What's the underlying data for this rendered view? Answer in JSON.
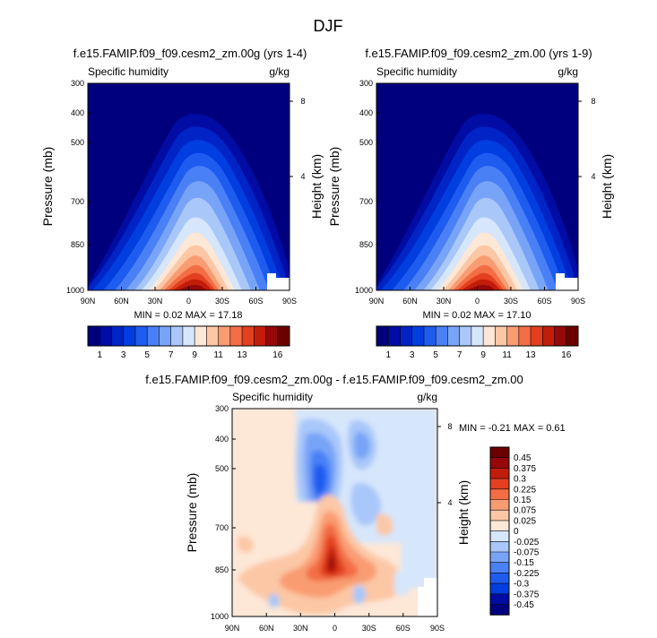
{
  "figure_title": "DJF",
  "chart_data": [
    {
      "type": "heatmap",
      "title": "f.e15.FAMIP.f09_f09.cesm2_zm.00g (yrs 1-4)",
      "variable": "Specific humidity",
      "units": "g/kg",
      "xlabel": "",
      "ylabel": "Pressure (mb)",
      "ylabel_right": "Height (km)",
      "x_ticks": [
        "90N",
        "60N",
        "30N",
        "0",
        "30S",
        "60S",
        "90S"
      ],
      "y_ticks": [
        "300",
        "400",
        "500",
        "700",
        "850",
        "1000"
      ],
      "y_ticks_right": [
        "8",
        "4"
      ],
      "xlim": [
        90,
        -90
      ],
      "ylim": [
        1000,
        300
      ],
      "min": 0.02,
      "max": 17.18,
      "stats_label": "MIN =  0.02  MAX = 17.18",
      "colorbar_levels": [
        1,
        2,
        3,
        4,
        5,
        6,
        7,
        8,
        9,
        10,
        11,
        12,
        13,
        14,
        15,
        16
      ],
      "colorbar_labels": [
        "1",
        "3",
        "5",
        "7",
        "9",
        "11",
        "13",
        "16"
      ]
    },
    {
      "type": "heatmap",
      "title": "f.e15.FAMIP.f09_f09.cesm2_zm.00 (yrs 1-9)",
      "variable": "Specific humidity",
      "units": "g/kg",
      "xlabel": "",
      "ylabel": "Pressure (mb)",
      "ylabel_right": "Height (km)",
      "x_ticks": [
        "90N",
        "60N",
        "30N",
        "0",
        "30S",
        "60S",
        "90S"
      ],
      "y_ticks": [
        "300",
        "400",
        "500",
        "700",
        "850",
        "1000"
      ],
      "y_ticks_right": [
        "8",
        "4"
      ],
      "xlim": [
        90,
        -90
      ],
      "ylim": [
        1000,
        300
      ],
      "min": 0.02,
      "max": 17.1,
      "stats_label": "MIN =  0.02  MAX = 17.10",
      "colorbar_levels": [
        1,
        2,
        3,
        4,
        5,
        6,
        7,
        8,
        9,
        10,
        11,
        12,
        13,
        14,
        15,
        16
      ],
      "colorbar_labels": [
        "1",
        "3",
        "5",
        "7",
        "9",
        "11",
        "13",
        "16"
      ]
    },
    {
      "type": "heatmap",
      "title": "f.e15.FAMIP.f09_f09.cesm2_zm.00g - f.e15.FAMIP.f09_f09.cesm2_zm.00",
      "variable": "Specific humidity",
      "units": "g/kg",
      "xlabel": "",
      "ylabel": "Pressure (mb)",
      "ylabel_right": "Height (km)",
      "x_ticks": [
        "90N",
        "60N",
        "30N",
        "0",
        "30S",
        "60S",
        "90S"
      ],
      "y_ticks": [
        "300",
        "400",
        "500",
        "700",
        "850",
        "1000"
      ],
      "y_ticks_right": [
        "8",
        "4"
      ],
      "xlim": [
        90,
        -90
      ],
      "ylim": [
        1000,
        300
      ],
      "min": -0.21,
      "max": 0.61,
      "stats_label": "MIN = -0.21  MAX =  0.61",
      "colorbar_levels": [
        -0.45,
        -0.375,
        -0.3,
        -0.225,
        -0.15,
        -0.075,
        -0.025,
        0,
        0.025,
        0.075,
        0.15,
        0.225,
        0.3,
        0.375,
        0.45
      ],
      "colorbar_labels": [
        "0.45",
        "0.375",
        "0.3",
        "0.225",
        "0.15",
        "0.075",
        "0.025",
        "0",
        "-0.025",
        "-0.075",
        "-0.15",
        "-0.225",
        "-0.3",
        "-0.375",
        "-0.45"
      ]
    }
  ],
  "colors": {
    "seq": [
      "#00007f",
      "#000ca3",
      "#0024c6",
      "#003ee0",
      "#1e5cf0",
      "#4a80f6",
      "#78a4f8",
      "#a9c7f9",
      "#d6e6fb",
      "#fde7d7",
      "#fcc7a5",
      "#f99c72",
      "#f36d45",
      "#e2401f",
      "#c21d0b",
      "#96080a",
      "#6b0000"
    ],
    "div": [
      "#6b0000",
      "#96080a",
      "#c21d0b",
      "#e2401f",
      "#f36d45",
      "#f99c72",
      "#fcc7a5",
      "#fde7d7",
      "#d6e6fb",
      "#a9c7f9",
      "#78a4f8",
      "#4a80f6",
      "#1e5cf0",
      "#003ee0",
      "#000ca3",
      "#00007f"
    ]
  }
}
